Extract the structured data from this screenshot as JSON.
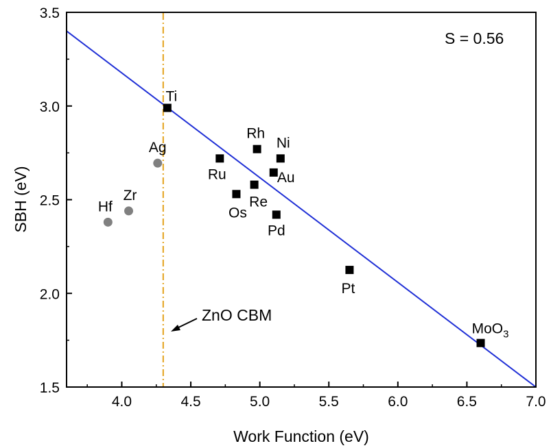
{
  "chart_data": {
    "type": "scatter",
    "xlabel": "Work Function (eV)",
    "ylabel": "SBH (eV)",
    "xlim": [
      3.6,
      7.0
    ],
    "ylim": [
      1.5,
      3.5
    ],
    "xticks": [
      "4.0",
      "4.5",
      "5.0",
      "5.5",
      "6.0",
      "6.5",
      "7.0"
    ],
    "xtick_values": [
      4.0,
      4.5,
      5.0,
      5.5,
      6.0,
      6.5,
      7.0
    ],
    "yticks": [
      "1.5",
      "2.0",
      "2.5",
      "3.0",
      "3.5"
    ],
    "ytick_values": [
      1.5,
      2.0,
      2.5,
      3.0,
      3.5
    ],
    "annotation_s": "S = 0.56",
    "annotation_cbm": "ZnO CBM",
    "cbm_x": 4.3,
    "fit_line": {
      "x": [
        3.6,
        7.0
      ],
      "y": [
        3.4,
        1.5
      ],
      "color": "#1f2fd6"
    },
    "series": [
      {
        "marker": "square",
        "color": "#000000",
        "points": [
          {
            "label": "Ti",
            "x": 4.33,
            "y": 2.99
          },
          {
            "label": "Ru",
            "x": 4.71,
            "y": 2.72
          },
          {
            "label": "Rh",
            "x": 4.98,
            "y": 2.77
          },
          {
            "label": "Ni",
            "x": 5.15,
            "y": 2.72
          },
          {
            "label": "Au",
            "x": 5.1,
            "y": 2.645
          },
          {
            "label": "Re",
            "x": 4.96,
            "y": 2.58
          },
          {
            "label": "Os",
            "x": 4.83,
            "y": 2.53
          },
          {
            "label": "Pd",
            "x": 5.12,
            "y": 2.42
          },
          {
            "label": "Pt",
            "x": 5.65,
            "y": 2.125
          },
          {
            "label": "MoO3",
            "x": 6.6,
            "y": 1.735
          }
        ]
      },
      {
        "marker": "circle",
        "color": "#808080",
        "points": [
          {
            "label": "Ag",
            "x": 4.26,
            "y": 2.695
          },
          {
            "label": "Zr",
            "x": 4.05,
            "y": 2.44
          },
          {
            "label": "Hf",
            "x": 3.9,
            "y": 2.38
          }
        ]
      }
    ],
    "colors": {
      "cbm_line": "#e3a21a",
      "axis": "#000000"
    }
  }
}
